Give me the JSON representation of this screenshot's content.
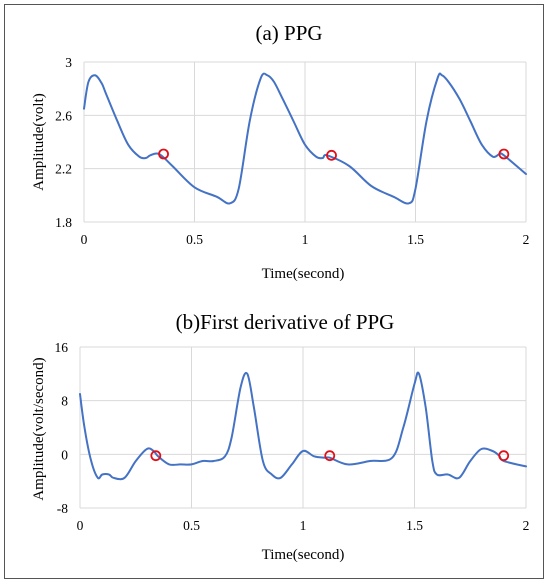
{
  "colors": {
    "line": "#4472C4",
    "marker": "#E0101A"
  },
  "chart_data": [
    {
      "type": "line",
      "title": "(a) PPG",
      "xlabel": "Time(second)",
      "ylabel": "Amplitude(volt)",
      "xlim": [
        0,
        2
      ],
      "ylim": [
        1.8,
        3
      ],
      "xticks": [
        "0",
        "0.5",
        "1",
        "1.5",
        "2"
      ],
      "yticks": [
        "1.8",
        "2.2",
        "2.6",
        "3"
      ],
      "xtick_values": [
        0,
        0.5,
        1,
        1.5,
        2
      ],
      "ytick_values": [
        1.8,
        2.2,
        2.6,
        3
      ],
      "grid": true,
      "series": [
        {
          "x": [
            0,
            0.02,
            0.05,
            0.08,
            0.1,
            0.15,
            0.2,
            0.25,
            0.28,
            0.3,
            0.34,
            0.4,
            0.5,
            0.6,
            0.66,
            0.7,
            0.75,
            0.8,
            0.83,
            0.86,
            0.9,
            0.95,
            1.0,
            1.05,
            1.08,
            1.1,
            1.2,
            1.3,
            1.4,
            1.47,
            1.5,
            1.55,
            1.6,
            1.62,
            1.65,
            1.7,
            1.75,
            1.8,
            1.85,
            1.88,
            1.9,
            2.0
          ],
          "y": [
            2.65,
            2.85,
            2.9,
            2.84,
            2.76,
            2.56,
            2.38,
            2.29,
            2.28,
            2.3,
            2.31,
            2.22,
            2.06,
            1.99,
            1.94,
            2.05,
            2.56,
            2.88,
            2.9,
            2.85,
            2.72,
            2.55,
            2.38,
            2.29,
            2.28,
            2.3,
            2.22,
            2.07,
            1.99,
            1.94,
            2.05,
            2.56,
            2.88,
            2.9,
            2.85,
            2.72,
            2.55,
            2.38,
            2.29,
            2.31,
            2.3,
            2.16
          ]
        }
      ],
      "markers": {
        "x": [
          0.36,
          1.12,
          1.9
        ],
        "y": [
          2.31,
          2.3,
          2.31
        ]
      }
    },
    {
      "type": "line",
      "title": "(b)First derivative of PPG",
      "xlabel": "Time(second)",
      "ylabel": "Amplitude(volt/second)",
      "xlim": [
        0,
        2
      ],
      "ylim": [
        -8,
        16
      ],
      "xticks": [
        "0",
        "0.5",
        "1",
        "1.5",
        "2"
      ],
      "yticks": [
        "-8",
        "0",
        "8",
        "16"
      ],
      "xtick_values": [
        0,
        0.5,
        1,
        1.5,
        2
      ],
      "ytick_values": [
        -8,
        0,
        8,
        16
      ],
      "grid": true,
      "series": [
        {
          "x": [
            0,
            0.02,
            0.05,
            0.08,
            0.1,
            0.13,
            0.15,
            0.2,
            0.25,
            0.3,
            0.33,
            0.35,
            0.4,
            0.45,
            0.5,
            0.55,
            0.6,
            0.65,
            0.68,
            0.72,
            0.75,
            0.78,
            0.82,
            0.86,
            0.9,
            0.95,
            1.0,
            1.05,
            1.1,
            1.12,
            1.2,
            1.3,
            1.4,
            1.45,
            1.5,
            1.52,
            1.55,
            1.58,
            1.6,
            1.65,
            1.7,
            1.75,
            1.8,
            1.85,
            1.88,
            1.9,
            2.0
          ],
          "y": [
            9,
            4,
            -1,
            -3.5,
            -3,
            -3,
            -3.5,
            -3.5,
            -1,
            0.8,
            0.5,
            -0.3,
            -1.5,
            -1.5,
            -1.5,
            -1,
            -1,
            -0.3,
            2.5,
            10,
            12,
            7,
            -1,
            -3,
            -3.5,
            -1.5,
            0.5,
            -0.3,
            -0.5,
            -0.5,
            -1.5,
            -1,
            -0.5,
            4,
            10.5,
            12,
            7,
            -1,
            -3,
            -3,
            -3.5,
            -1,
            0.8,
            0.5,
            -0.2,
            -1,
            -1.8
          ]
        }
      ],
      "markers": {
        "x": [
          0.34,
          1.12,
          1.9
        ],
        "y": [
          -0.2,
          -0.2,
          -0.2
        ]
      }
    }
  ]
}
